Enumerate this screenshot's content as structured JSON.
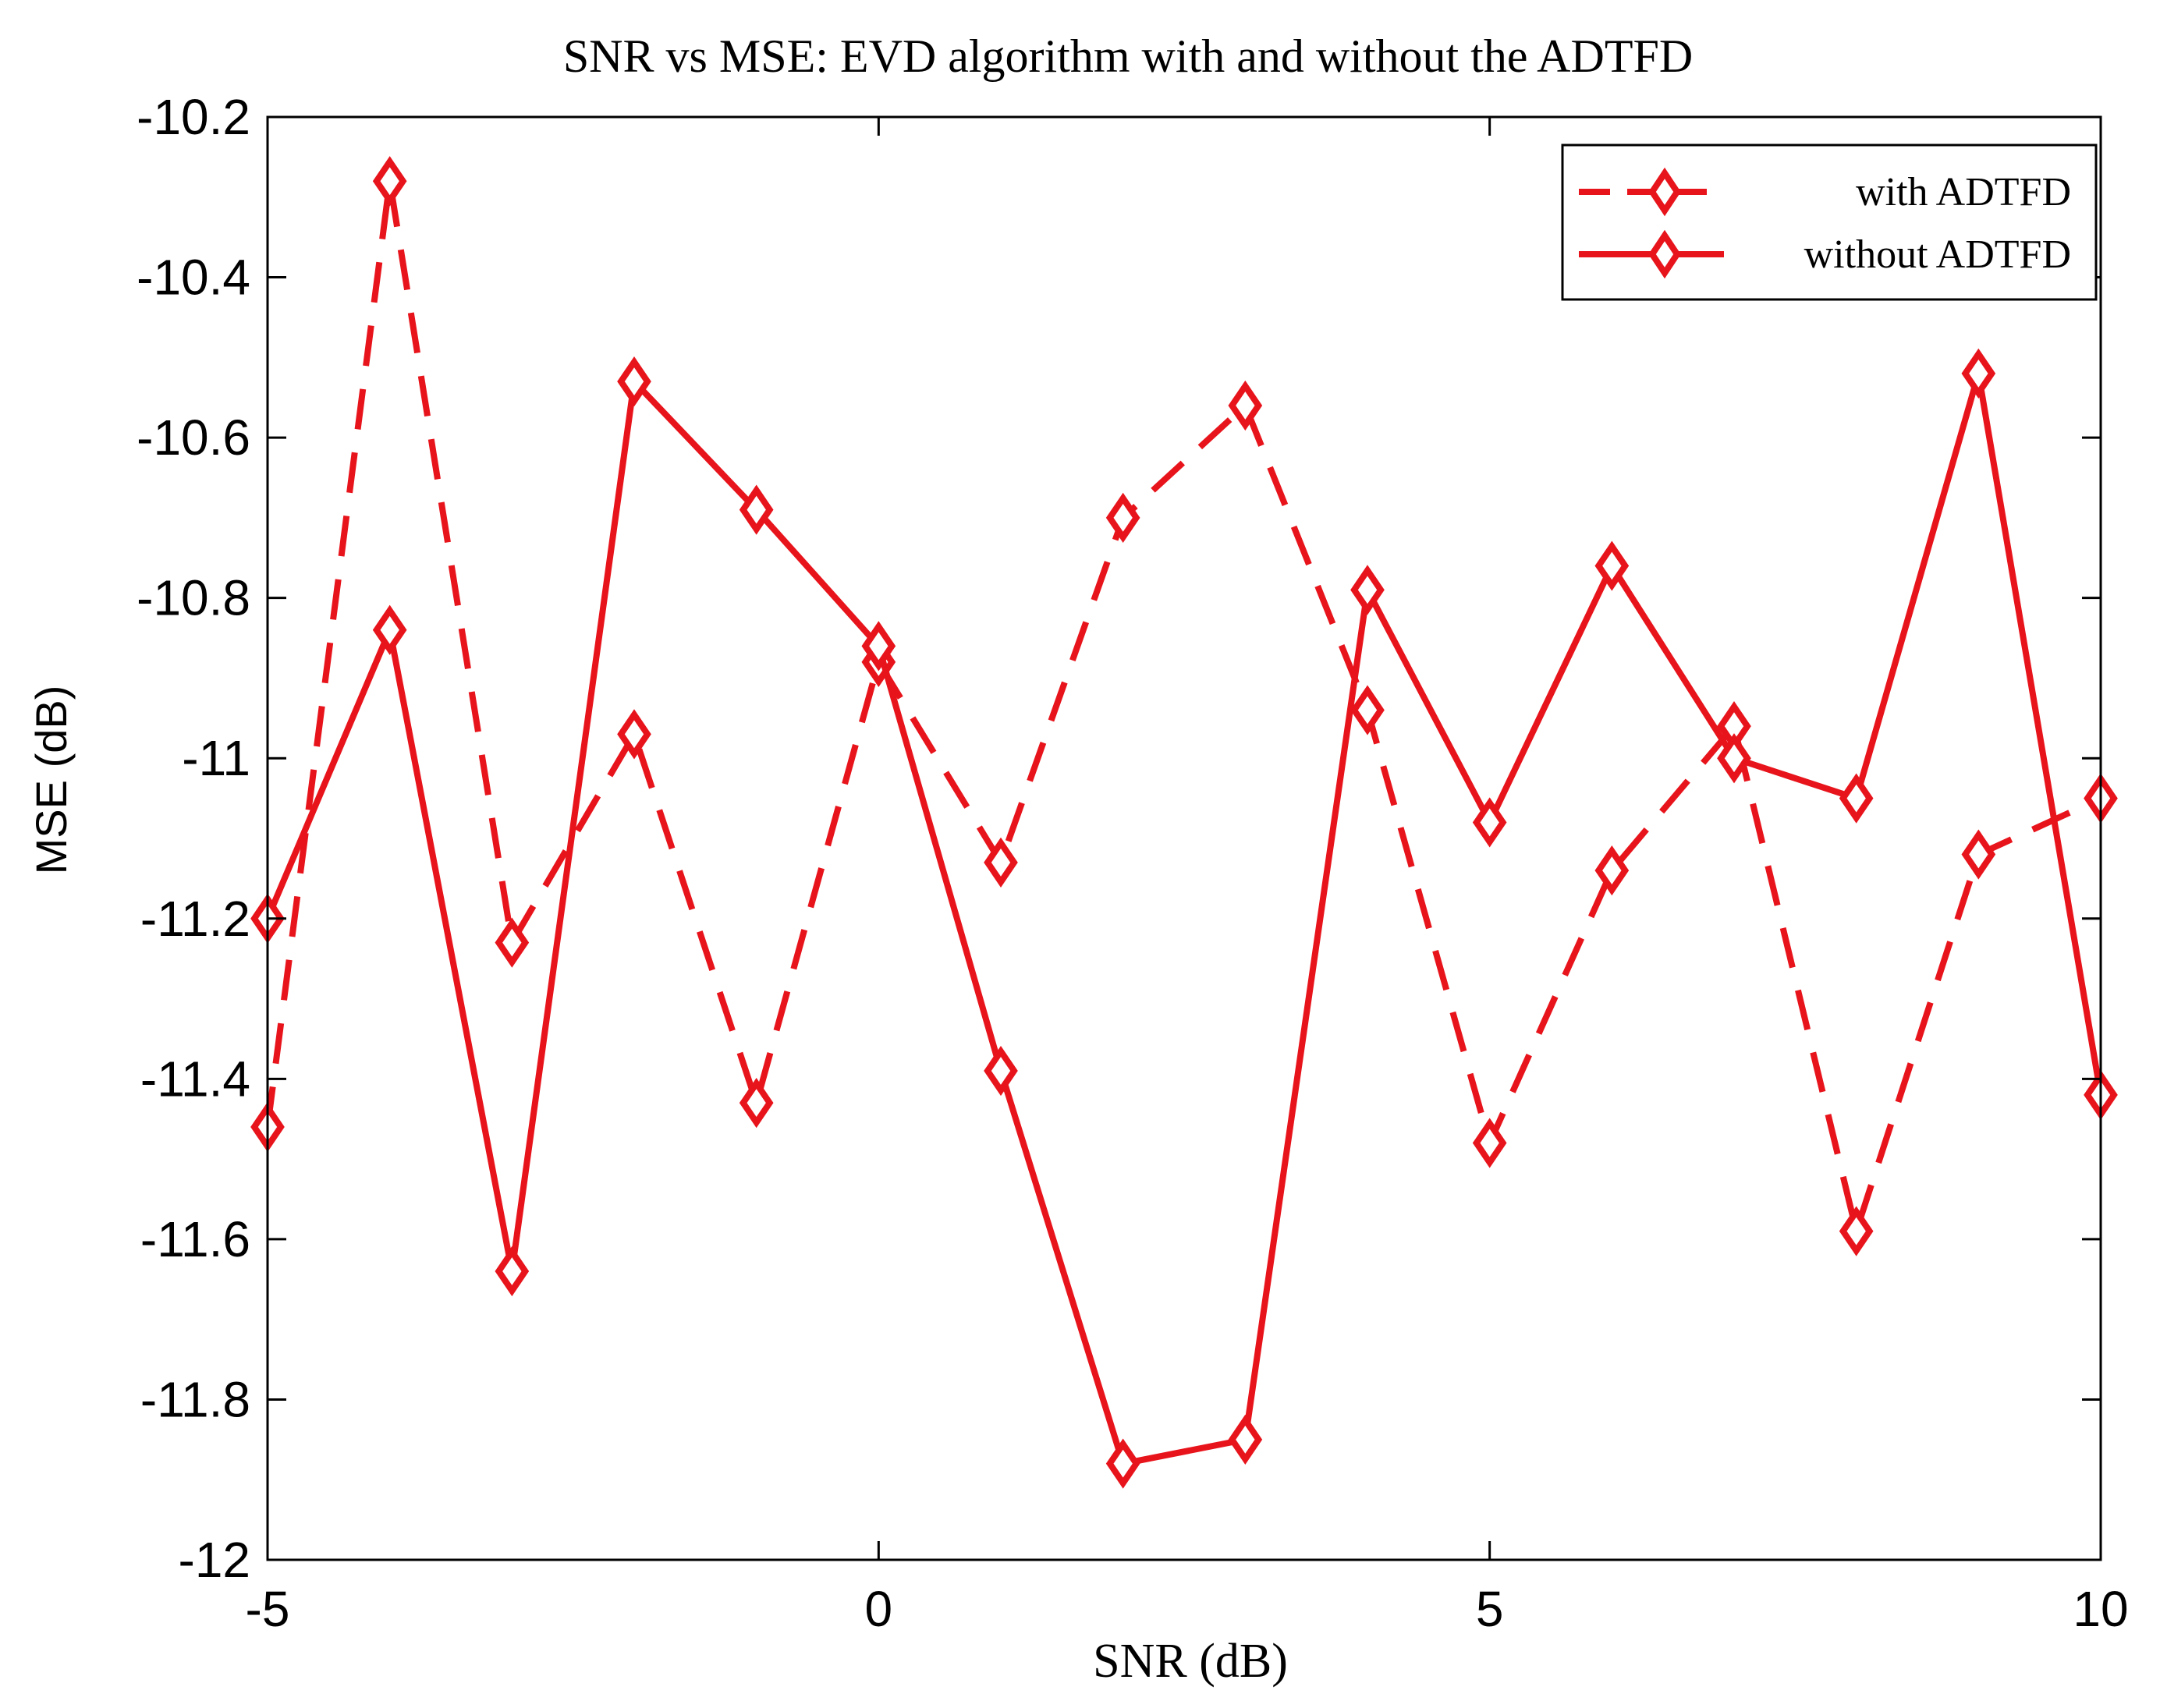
{
  "chart_data": {
    "type": "line",
    "title": "SNR vs MSE: EVD algorithm with and without the ADTFD",
    "xlabel": "SNR (dB)",
    "ylabel": "MSE (dB)",
    "xlim": [
      -5,
      10
    ],
    "ylim": [
      -12,
      -10.2
    ],
    "xticks": [
      -5,
      0,
      5,
      10
    ],
    "yticks": [
      -10.2,
      -10.4,
      -10.6,
      -10.8,
      -11,
      -11.2,
      -11.4,
      -11.6,
      -11.8,
      -12
    ],
    "xtick_labels": [
      "-5",
      "0",
      "5",
      "10"
    ],
    "ytick_labels": [
      "-10.2",
      "-10.4",
      "-10.6",
      "-10.8",
      "-11",
      "-11.2",
      "-11.4",
      "-11.6",
      "-11.8",
      "-12"
    ],
    "grid": false,
    "legend_position": "top-right",
    "x": [
      -5,
      -4,
      -3,
      -2,
      -1,
      0,
      1,
      2,
      3,
      4,
      5,
      6,
      7,
      8,
      9,
      10
    ],
    "series": [
      {
        "name": "with ADTFD",
        "line_style": "dashed",
        "marker": "diamond",
        "color": "#e8141c",
        "values": [
          -11.46,
          -10.28,
          -11.23,
          -10.97,
          -11.43,
          -10.88,
          -11.13,
          -10.7,
          -10.56,
          -10.94,
          -11.48,
          -11.14,
          -10.96,
          -11.59,
          -11.12,
          -11.05
        ]
      },
      {
        "name": "without ADTFD",
        "line_style": "solid",
        "marker": "diamond",
        "color": "#e8141c",
        "values": [
          -11.2,
          -10.84,
          -11.64,
          -10.53,
          -10.69,
          -10.86,
          -11.39,
          -11.88,
          -11.85,
          -10.79,
          -11.08,
          -10.76,
          -11.0,
          -11.05,
          -10.52,
          -11.42
        ]
      }
    ]
  }
}
